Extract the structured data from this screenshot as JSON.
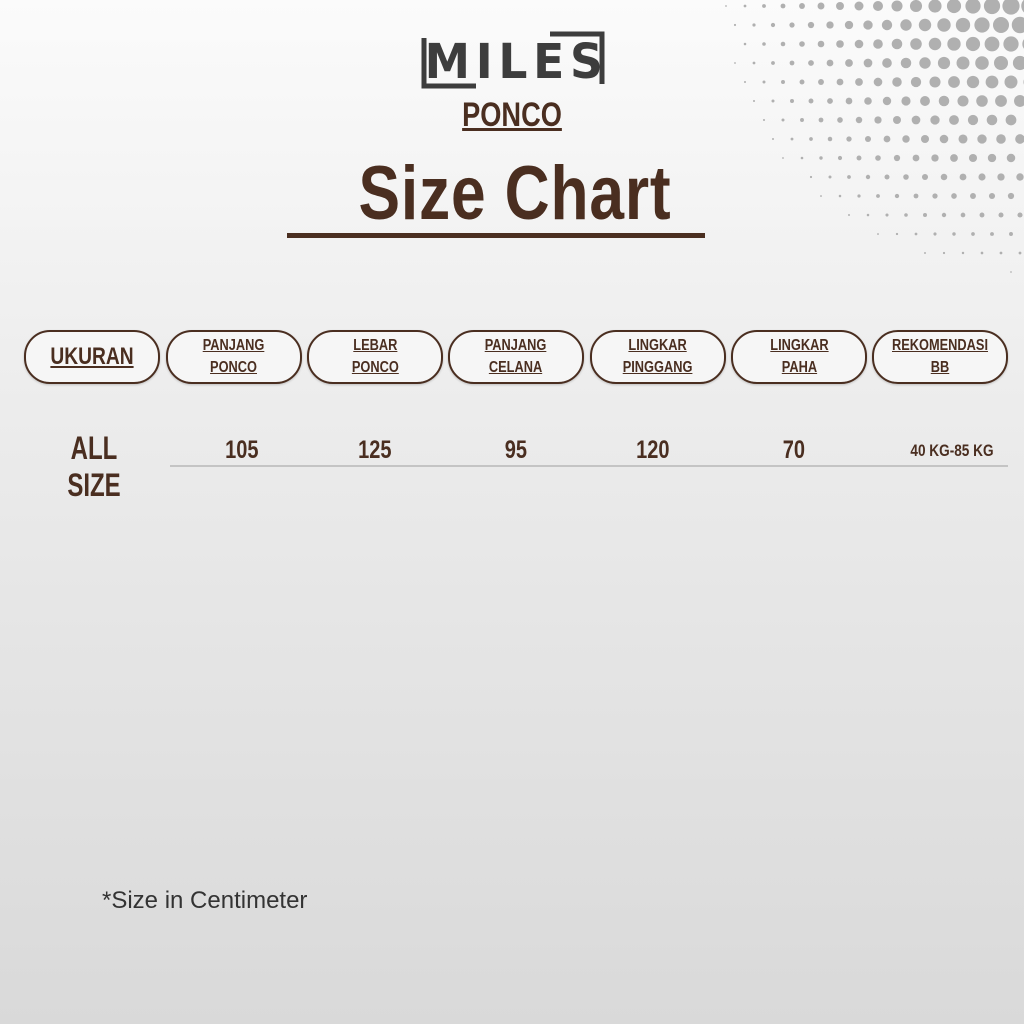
{
  "brand": {
    "logo_text": "MILES",
    "product": "PONCO"
  },
  "title": "Size Chart",
  "table": {
    "headers": [
      "UKURAN",
      "PANJANG\nPONCO",
      "LEBAR\nPONCO",
      "PANJANG\nCELANA",
      "LINGKAR\nPINGGANG",
      "LINGKAR\nPAHA",
      "REKOMENDASI\nBB"
    ],
    "rows": [
      {
        "label": "ALL SIZE",
        "values": [
          "105",
          "125",
          "95",
          "120",
          "70",
          "40 KG-85 KG"
        ]
      }
    ]
  },
  "note": "*Size in Centimeter",
  "colors": {
    "text": "#4a2e20",
    "logo": "#3d3d3d",
    "dots": "#b0b0b0"
  }
}
